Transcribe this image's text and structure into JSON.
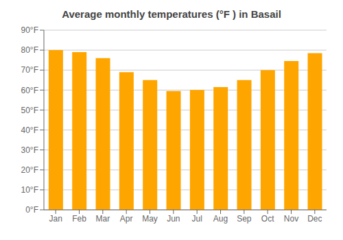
{
  "chart_data": {
    "type": "bar",
    "title": "Average monthly temperatures (°F ) in Basail",
    "categories": [
      "Jan",
      "Feb",
      "Mar",
      "Apr",
      "May",
      "Jun",
      "Jul",
      "Aug",
      "Sep",
      "Oct",
      "Nov",
      "Dec"
    ],
    "values": [
      80,
      79,
      76,
      69,
      65,
      59.5,
      60,
      61.5,
      65,
      70,
      74.5,
      78.5
    ],
    "color": "#FFA500",
    "ylim": [
      0,
      90
    ],
    "yticks": [
      {
        "value": 0,
        "label": "0°F"
      },
      {
        "value": 10,
        "label": "10°F"
      },
      {
        "value": 20,
        "label": "20°F"
      },
      {
        "value": 30,
        "label": "30°F"
      },
      {
        "value": 40,
        "label": "40°F"
      },
      {
        "value": 50,
        "label": "50°F"
      },
      {
        "value": 60,
        "label": "60°F"
      },
      {
        "value": 70,
        "label": "70°F"
      },
      {
        "value": 80,
        "label": "80°F"
      },
      {
        "value": 90,
        "label": "90°F"
      }
    ],
    "grid": true
  }
}
